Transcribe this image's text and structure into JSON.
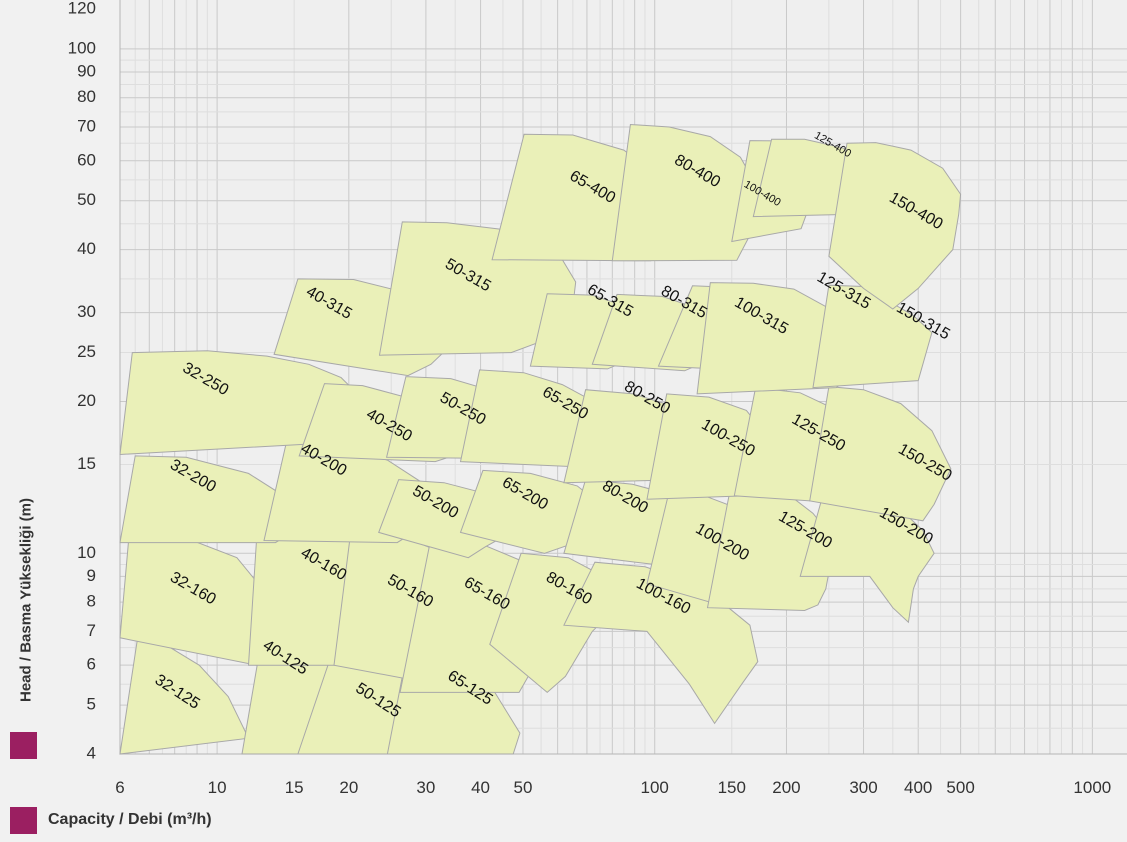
{
  "chart_data": {
    "type": "area",
    "title": "",
    "xlabel": "Capacity / Debi (m³/h)",
    "ylabel": "Head / Basma Yüksekliği (m)",
    "x_scale": "log",
    "y_scale": "log",
    "xlim": [
      6,
      1200
    ],
    "ylim": [
      4,
      125
    ],
    "x_ticks": [
      "6",
      "10",
      "15",
      "20",
      "30",
      "40",
      "50",
      "100",
      "150",
      "200",
      "300",
      "400",
      "500",
      "1000"
    ],
    "y_ticks": [
      "120",
      "100",
      "90",
      "80",
      "70",
      "60",
      "50",
      "40",
      "30",
      "25",
      "20",
      "15",
      "10",
      "9",
      "8",
      "7",
      "6",
      "5",
      "4"
    ],
    "grid": true,
    "accent_color": "#9b1f61",
    "region_fill": "#eaf0b8",
    "series": [
      {
        "name": "32-125",
        "q": [
          6,
          6.6,
          7.6,
          9.1,
          10.6,
          11.8
        ],
        "h": [
          4,
          6.9,
          6.6,
          6,
          5.2,
          4.3
        ]
      },
      {
        "name": "40-125",
        "q": [
          11.4,
          12.8,
          16.5,
          19.2,
          20.6,
          18.5,
          16.8
        ],
        "h": [
          4,
          7.2,
          6.9,
          6.3,
          5.4,
          4.5,
          4
        ]
      },
      {
        "name": "50-125",
        "q": [
          15.3,
          18.6,
          23.4,
          27.5,
          29.4,
          26.5,
          24.8
        ],
        "h": [
          4,
          6.6,
          6.3,
          5.7,
          4.9,
          4.1,
          4
        ]
      },
      {
        "name": "65-125",
        "q": [
          24.5,
          27,
          34.5,
          42,
          49.2,
          47.5
        ],
        "h": [
          4,
          6.2,
          6,
          5.5,
          4.4,
          4
        ]
      },
      {
        "name": "32-160",
        "q": [
          6,
          6.3,
          8.3,
          11.1,
          12.7,
          14.2,
          13.4,
          12.3
        ],
        "h": [
          6.8,
          11,
          10.8,
          9.8,
          8.5,
          7.2,
          6.4,
          6
        ]
      },
      {
        "name": "40-160",
        "q": [
          11.8,
          12.4,
          16.5,
          21.3,
          24.9,
          26.8,
          24.3,
          22.3
        ],
        "h": [
          6,
          11.8,
          11.5,
          10.5,
          9.3,
          7.5,
          6.6,
          6
        ]
      },
      {
        "name": "50-160",
        "q": [
          18.5,
          20.2,
          26.5,
          33,
          38,
          40.6,
          36,
          31.5
        ],
        "h": [
          6,
          11,
          10.8,
          10,
          8.8,
          7.6,
          6,
          5.5
        ]
      },
      {
        "name": "65-160",
        "q": [
          26.2,
          30.8,
          40.5,
          52,
          58.8,
          56,
          52,
          49
        ],
        "h": [
          5.3,
          10.7,
          10.4,
          9.5,
          8,
          6.6,
          5.8,
          5.3
        ]
      },
      {
        "name": "80-160",
        "q": [
          42,
          49.5,
          63.5,
          76.5,
          83.5,
          78,
          72,
          62.5,
          56.8
        ],
        "h": [
          6.6,
          10,
          9.8,
          9,
          8.1,
          7.5,
          7,
          5.7,
          5.3
        ]
      },
      {
        "name": "100-160",
        "q": [
          62,
          73,
          95,
          115,
          135,
          165,
          172,
          158,
          137,
          120,
          96
        ],
        "h": [
          7.2,
          9.6,
          9.4,
          8.9,
          8.3,
          7.2,
          6.1,
          5.5,
          4.6,
          5.5,
          7
        ]
      },
      {
        "name": "32-200",
        "q": [
          6,
          6.5,
          8.5,
          11.8,
          14.2,
          15.7,
          14.8,
          13.6
        ],
        "h": [
          10.5,
          15.6,
          15.5,
          14.4,
          13,
          11.7,
          11,
          10.5
        ]
      },
      {
        "name": "40-200",
        "q": [
          12.8,
          14.4,
          19,
          24.5,
          30.2,
          32.3,
          29.5,
          25.8
        ],
        "h": [
          10.6,
          16.6,
          16.3,
          15.3,
          13.6,
          12.1,
          11.3,
          10.5
        ]
      },
      {
        "name": "50-200",
        "q": [
          23.4,
          26,
          33,
          43,
          49.8,
          47,
          41,
          37.5
        ],
        "h": [
          11,
          14,
          13.8,
          13,
          11.8,
          11,
          10.3,
          9.8
        ]
      },
      {
        "name": "65-200",
        "q": [
          36,
          40.5,
          52,
          66.5,
          77,
          72,
          66,
          56
        ],
        "h": [
          11,
          14.6,
          14.4,
          13.6,
          12.3,
          11.3,
          10.5,
          10
        ]
      },
      {
        "name": "80-200",
        "q": [
          62,
          69.5,
          89,
          108,
          118,
          114,
          106,
          100
        ],
        "h": [
          10,
          14,
          13.7,
          13.1,
          12,
          10.8,
          10,
          9.5
        ]
      },
      {
        "name": "100-200",
        "q": [
          96,
          108,
          130,
          150,
          162,
          170,
          158,
          148
        ],
        "h": [
          8.7,
          13.3,
          13,
          12.4,
          11.2,
          9.2,
          8.3,
          7.8
        ]
      },
      {
        "name": "125-200",
        "q": [
          132,
          150,
          195,
          230,
          258,
          246,
          236,
          220
        ],
        "h": [
          7.8,
          13.9,
          13.4,
          12,
          10.6,
          8.5,
          7.9,
          7.7
        ]
      },
      {
        "name": "150-200",
        "q": [
          215,
          245,
          300,
          365,
          410,
          435,
          400,
          390,
          380,
          350,
          310
        ],
        "h": [
          9,
          13.5,
          13.3,
          12.2,
          11.1,
          10,
          9,
          8.5,
          7.3,
          7.8,
          9
        ]
      },
      {
        "name": "32-250",
        "q": [
          6,
          6.4,
          9.5,
          13,
          16.2,
          19.2,
          21.8,
          20.4,
          19.2
        ],
        "h": [
          15.7,
          25,
          25.2,
          24.6,
          23.7,
          22.3,
          20,
          18.2,
          16.6
        ]
      },
      {
        "name": "40-250",
        "q": [
          15.4,
          17.6,
          21.5,
          27.5,
          33,
          36.5,
          33.8,
          31.5
        ],
        "h": [
          15.6,
          21.7,
          21.5,
          20.3,
          18.5,
          16.4,
          15.5,
          15.2
        ]
      },
      {
        "name": "50-250",
        "q": [
          24.4,
          27,
          34.2,
          42.5,
          50.5,
          56.3,
          52.5,
          48.8
        ],
        "h": [
          15.5,
          22.4,
          22.2,
          21,
          19.3,
          16.6,
          15.6,
          15.4
        ]
      },
      {
        "name": "65-250",
        "q": [
          36,
          39.8,
          50.2,
          61.5,
          74,
          80.8,
          76.7,
          71.2
        ],
        "h": [
          15.2,
          23.1,
          22.8,
          21.6,
          19.8,
          16.6,
          15.4,
          14.8
        ]
      },
      {
        "name": "80-250",
        "q": [
          62,
          69.5,
          89.5,
          111.5,
          128.5,
          136,
          128,
          118.5
        ],
        "h": [
          13.8,
          21.1,
          20.7,
          19.5,
          17.9,
          15.6,
          14.6,
          14
        ]
      },
      {
        "name": "100-250",
        "q": [
          96,
          106.5,
          133,
          162,
          181,
          186,
          176,
          163
        ],
        "h": [
          12.8,
          20.7,
          20.4,
          19.2,
          17,
          14.5,
          13.6,
          13
        ]
      },
      {
        "name": "125-250",
        "q": [
          152,
          170,
          215,
          258,
          290,
          298,
          282,
          262
        ],
        "h": [
          13,
          21.3,
          20.8,
          19.3,
          17.6,
          14.5,
          13.4,
          12.6
        ]
      },
      {
        "name": "150-250",
        "q": [
          226,
          250,
          300,
          365,
          430,
          475,
          435,
          410
        ],
        "h": [
          12.7,
          21.4,
          21.1,
          19.8,
          17.5,
          14.7,
          12.5,
          11.6
        ]
      },
      {
        "name": "40-315",
        "q": [
          13.5,
          15.3,
          20.5,
          26.5,
          31.5,
          33.5,
          30.8,
          27.3
        ],
        "h": [
          24.8,
          35,
          34.9,
          33,
          29.8,
          25.4,
          23.7,
          22.5
        ]
      },
      {
        "name": "50-315",
        "q": [
          23.5,
          26.5,
          33.5,
          45.5,
          60,
          66,
          64.5,
          57,
          47
        ],
        "h": [
          24.7,
          45.4,
          45.2,
          43.8,
          39.6,
          34.5,
          29.2,
          26.6,
          25
        ]
      },
      {
        "name": "65-315",
        "q": [
          52,
          56.8,
          72,
          88.5,
          98,
          93.5,
          87.5,
          78
        ],
        "h": [
          23.5,
          32.7,
          32.5,
          30.6,
          28.1,
          25.4,
          24.2,
          23.2
        ]
      },
      {
        "name": "80-315",
        "q": [
          72,
          82,
          104,
          128,
          146,
          140,
          131,
          117
        ],
        "h": [
          23.7,
          32.6,
          32.3,
          30.4,
          28,
          25.3,
          24,
          23
        ]
      },
      {
        "name": "100-315",
        "q": [
          102,
          122,
          145,
          175,
          210,
          198,
          186,
          170
        ],
        "h": [
          23.5,
          33.9,
          33.7,
          32.2,
          29.2,
          25.4,
          23.9,
          23
        ]
      },
      {
        "name": "125-315",
        "q": [
          125,
          134,
          168,
          208,
          270,
          330,
          305,
          280,
          260
        ],
        "h": [
          20.7,
          34.4,
          34.3,
          33.4,
          29.5,
          28.7,
          24.6,
          22.5,
          21.3
        ]
      },
      {
        "name": "150-315",
        "q": [
          230,
          250,
          300,
          345,
          390,
          430,
          400
        ],
        "h": [
          21.3,
          34,
          33.8,
          31.5,
          29.6,
          27.4,
          22
        ]
      },
      {
        "name": "65-400",
        "q": [
          42.5,
          50.3,
          65,
          85,
          105,
          115,
          112,
          98
        ],
        "h": [
          38.2,
          67.7,
          67.5,
          63,
          55,
          48,
          41.8,
          38
        ]
      },
      {
        "name": "80-400",
        "q": [
          80,
          88,
          108,
          134,
          157,
          172,
          168,
          154
        ],
        "h": [
          38,
          70.8,
          70,
          67,
          61,
          53,
          44,
          38.1
        ]
      },
      {
        "name": "100-400",
        "q": [
          150,
          165,
          195,
          240,
          258,
          230,
          216
        ],
        "h": [
          41.5,
          65.8,
          65.7,
          63,
          57,
          51,
          44
        ]
      },
      {
        "name": "125-400",
        "q": [
          168,
          185,
          220,
          268,
          320,
          305,
          285
        ],
        "h": [
          46.5,
          66.2,
          66.2,
          63.7,
          59.5,
          52,
          47
        ]
      },
      {
        "name": "150-400",
        "q": [
          250,
          275,
          320,
          385,
          455,
          500,
          495,
          480,
          400,
          350,
          300
        ],
        "h": [
          38.8,
          65,
          65.2,
          63,
          58,
          51.5,
          47,
          40,
          33.5,
          30.5,
          33.5
        ]
      }
    ],
    "labels": [
      {
        "text": "32-125",
        "q": 8.1,
        "h": 5.3,
        "rot": 33
      },
      {
        "text": "40-125",
        "q": 14.3,
        "h": 6.2,
        "rot": 33
      },
      {
        "name": "50-125",
        "text": "50-125",
        "q": 23.3,
        "h": 5.1,
        "rot": 33
      },
      {
        "text": "65-125",
        "q": 37.8,
        "h": 5.4,
        "rot": 33
      },
      {
        "text": "32-160",
        "q": 8.8,
        "h": 8.5,
        "rot": 30
      },
      {
        "text": "40-160",
        "q": 17.5,
        "h": 9.5,
        "rot": 30
      },
      {
        "text": "50-160",
        "q": 27.6,
        "h": 8.4,
        "rot": 30
      },
      {
        "text": "65-160",
        "q": 41.3,
        "h": 8.3,
        "rot": 30
      },
      {
        "text": "80-160",
        "q": 63.6,
        "h": 8.5,
        "rot": 30
      },
      {
        "text": "100-160",
        "q": 104.5,
        "h": 8.2,
        "rot": 28
      },
      {
        "text": "32-200",
        "q": 8.8,
        "h": 14.2,
        "rot": 30
      },
      {
        "text": "40-200",
        "q": 17.5,
        "h": 15.3,
        "rot": 30
      },
      {
        "text": "50-200",
        "q": 31.5,
        "h": 12.6,
        "rot": 30
      },
      {
        "text": "65-200",
        "q": 50.5,
        "h": 13.1,
        "rot": 30
      },
      {
        "text": "80-200",
        "q": 85.5,
        "h": 12.9,
        "rot": 30
      },
      {
        "text": "100-200",
        "q": 142.5,
        "h": 10.5,
        "rot": 30
      },
      {
        "text": "125-200",
        "q": 220.5,
        "h": 11.1,
        "rot": 30
      },
      {
        "text": "150-200",
        "q": 375,
        "h": 11.3,
        "rot": 30
      },
      {
        "text": "32-250",
        "q": 9.4,
        "h": 22.1,
        "rot": 30
      },
      {
        "text": "40-250",
        "q": 24.7,
        "h": 17.9,
        "rot": 30
      },
      {
        "text": "50-250",
        "q": 36.4,
        "h": 19.3,
        "rot": 30
      },
      {
        "text": "65-250",
        "q": 62.4,
        "h": 19.8,
        "rot": 30
      },
      {
        "text": "80-250",
        "q": 96,
        "h": 20.3,
        "rot": 30
      },
      {
        "text": "100-250",
        "q": 147,
        "h": 16.9,
        "rot": 30
      },
      {
        "text": "125-250",
        "q": 236.5,
        "h": 17.3,
        "rot": 30
      },
      {
        "text": "150-250",
        "q": 414,
        "h": 15.1,
        "rot": 30
      },
      {
        "text": "40-315",
        "q": 18,
        "h": 31.3,
        "rot": 30
      },
      {
        "text": "50-315",
        "q": 37.4,
        "h": 35.5,
        "rot": 30
      },
      {
        "text": "65-315",
        "q": 79,
        "h": 31.6,
        "rot": 30
      },
      {
        "text": "80-315",
        "q": 116.5,
        "h": 31.4,
        "rot": 30
      },
      {
        "text": "100-315",
        "q": 175,
        "h": 29.5,
        "rot": 30
      },
      {
        "text": "125-315",
        "q": 270,
        "h": 33.1,
        "rot": 30
      },
      {
        "text": "150-315",
        "q": 410,
        "h": 28.8,
        "rot": 30
      },
      {
        "text": "65-400",
        "q": 72,
        "h": 53.1,
        "rot": 30
      },
      {
        "text": "80-400",
        "q": 125,
        "h": 57.1,
        "rot": 30
      },
      {
        "text": "100-400",
        "q": 176,
        "h": 51.6,
        "rot": 30,
        "small": true
      },
      {
        "text": "125-400",
        "q": 255,
        "h": 64.5,
        "rot": 30,
        "small": true
      },
      {
        "text": "150-400",
        "q": 395,
        "h": 47.6,
        "rot": 30
      }
    ]
  }
}
